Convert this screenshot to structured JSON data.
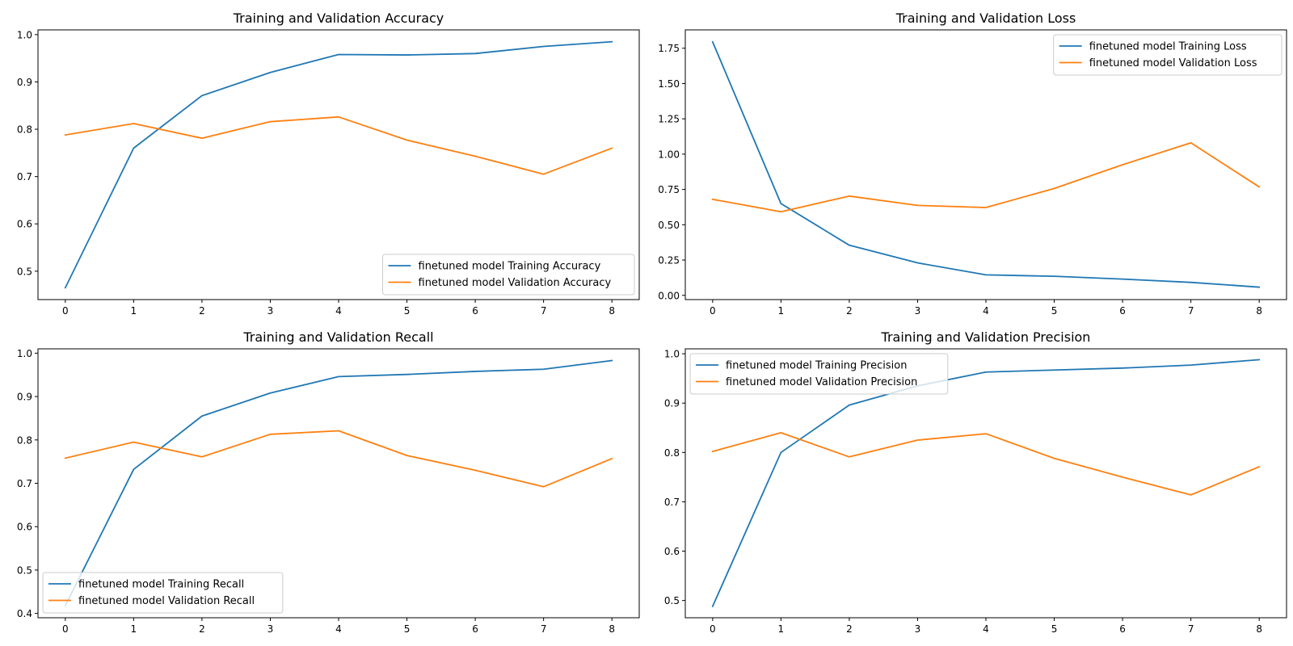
{
  "chart_data": [
    {
      "type": "line",
      "title": "Training and Validation Accuracy",
      "x": [
        0,
        1,
        2,
        3,
        4,
        5,
        6,
        7,
        8
      ],
      "xlim": [
        -0.4,
        8.4
      ],
      "ylim": [
        0.44,
        1.01
      ],
      "xticks": [
        "0",
        "1",
        "2",
        "3",
        "4",
        "5",
        "6",
        "7",
        "8"
      ],
      "yticks": [
        "0.5",
        "0.6",
        "0.7",
        "0.8",
        "0.9",
        "1.0"
      ],
      "grid": false,
      "legend_position": "lower-right",
      "series": [
        {
          "name": "finetuned model Training Accuracy",
          "color": "#1f77b4",
          "values": [
            0.465,
            0.76,
            0.871,
            0.92,
            0.958,
            0.957,
            0.96,
            0.975,
            0.985
          ]
        },
        {
          "name": "finetuned model Validation Accuracy",
          "color": "#ff7f0e",
          "values": [
            0.788,
            0.812,
            0.781,
            0.816,
            0.826,
            0.777,
            0.743,
            0.705,
            0.76
          ]
        }
      ]
    },
    {
      "type": "line",
      "title": "Training and Validation Loss",
      "x": [
        0,
        1,
        2,
        3,
        4,
        5,
        6,
        7,
        8
      ],
      "xlim": [
        -0.4,
        8.4
      ],
      "ylim": [
        -0.03,
        1.88
      ],
      "xticks": [
        "0",
        "1",
        "2",
        "3",
        "4",
        "5",
        "6",
        "7",
        "8"
      ],
      "yticks": [
        "0.00",
        "0.25",
        "0.50",
        "0.75",
        "1.00",
        "1.25",
        "1.50",
        "1.75"
      ],
      "grid": false,
      "legend_position": "upper-right",
      "series": [
        {
          "name": "finetuned model Training Loss",
          "color": "#1f77b4",
          "values": [
            1.795,
            0.65,
            0.355,
            0.23,
            0.145,
            0.135,
            0.115,
            0.092,
            0.058
          ]
        },
        {
          "name": "finetuned model Validation Loss",
          "color": "#ff7f0e",
          "values": [
            0.68,
            0.592,
            0.703,
            0.637,
            0.622,
            0.757,
            0.925,
            1.08,
            0.768
          ]
        }
      ]
    },
    {
      "type": "line",
      "title": "Training and Validation Recall",
      "x": [
        0,
        1,
        2,
        3,
        4,
        5,
        6,
        7,
        8
      ],
      "xlim": [
        -0.4,
        8.4
      ],
      "ylim": [
        0.39,
        1.01
      ],
      "xticks": [
        "0",
        "1",
        "2",
        "3",
        "4",
        "5",
        "6",
        "7",
        "8"
      ],
      "yticks": [
        "0.4",
        "0.5",
        "0.6",
        "0.7",
        "0.8",
        "0.9",
        "1.0"
      ],
      "grid": false,
      "legend_position": "lower-left",
      "series": [
        {
          "name": "finetuned model Training Recall",
          "color": "#1f77b4",
          "values": [
            0.418,
            0.732,
            0.855,
            0.908,
            0.946,
            0.951,
            0.958,
            0.963,
            0.983
          ]
        },
        {
          "name": "finetuned model Validation Recall",
          "color": "#ff7f0e",
          "values": [
            0.758,
            0.795,
            0.761,
            0.813,
            0.821,
            0.764,
            0.73,
            0.692,
            0.757
          ]
        }
      ]
    },
    {
      "type": "line",
      "title": "Training and Validation Precision",
      "x": [
        0,
        1,
        2,
        3,
        4,
        5,
        6,
        7,
        8
      ],
      "xlim": [
        -0.4,
        8.4
      ],
      "ylim": [
        0.465,
        1.01
      ],
      "xticks": [
        "0",
        "1",
        "2",
        "3",
        "4",
        "5",
        "6",
        "7",
        "8"
      ],
      "yticks": [
        "0.5",
        "0.6",
        "0.7",
        "0.8",
        "0.9",
        "1.0"
      ],
      "grid": false,
      "legend_position": "upper-left",
      "series": [
        {
          "name": "finetuned model Training Precision",
          "color": "#1f77b4",
          "values": [
            0.488,
            0.8,
            0.896,
            0.935,
            0.963,
            0.967,
            0.971,
            0.977,
            0.988
          ]
        },
        {
          "name": "finetuned model Validation Precision",
          "color": "#ff7f0e",
          "values": [
            0.802,
            0.84,
            0.791,
            0.825,
            0.838,
            0.788,
            0.75,
            0.714,
            0.771
          ]
        }
      ]
    }
  ]
}
